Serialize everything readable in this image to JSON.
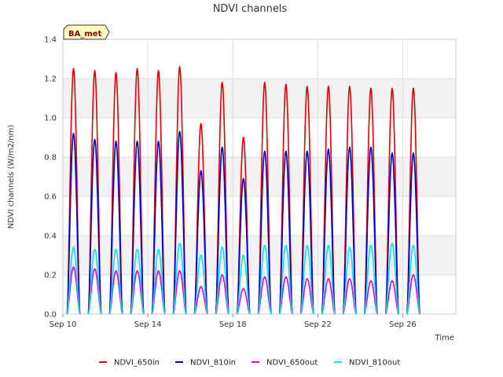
{
  "chart_data": {
    "type": "line",
    "title": "NDVI channels",
    "xlabel": "Time",
    "ylabel": "NDVI channels (W/m2/nm)",
    "ylim": [
      0,
      1.4
    ],
    "xlim_days": [
      10,
      28.5
    ],
    "yticks": [
      "0.0",
      "0.2",
      "0.4",
      "0.6",
      "0.8",
      "1.0",
      "1.2",
      "1.4"
    ],
    "xticks": [
      {
        "day": 10,
        "label": "Sep 10"
      },
      {
        "day": 14,
        "label": "Sep 14"
      },
      {
        "day": 18,
        "label": "Sep 18"
      },
      {
        "day": 22,
        "label": "Sep 22"
      },
      {
        "day": 26,
        "label": "Sep 26"
      }
    ],
    "badge": "BA_met",
    "grid": true,
    "legend_position": "bottom",
    "day_peaks": [
      10.5,
      11.5,
      12.5,
      13.5,
      14.5,
      15.5,
      16.5,
      17.5,
      18.5,
      19.5,
      20.5,
      21.5,
      22.5,
      23.5,
      24.5,
      25.5,
      26.5
    ],
    "series": [
      {
        "name": "NDVI_650in",
        "color": "#e00000",
        "peaks": [
          1.25,
          1.24,
          1.23,
          1.25,
          1.24,
          1.26,
          0.97,
          1.18,
          0.9,
          1.18,
          1.17,
          1.16,
          1.16,
          1.16,
          1.15,
          1.15,
          1.15
        ]
      },
      {
        "name": "NDVI_810in",
        "color": "#0000cc",
        "peaks": [
          0.92,
          0.89,
          0.88,
          0.88,
          0.88,
          0.93,
          0.73,
          0.85,
          0.69,
          0.83,
          0.83,
          0.83,
          0.84,
          0.85,
          0.85,
          0.82,
          0.82
        ]
      },
      {
        "name": "NDVI_650out",
        "color": "#dd00dd",
        "peaks": [
          0.24,
          0.23,
          0.22,
          0.22,
          0.22,
          0.22,
          0.14,
          0.2,
          0.13,
          0.19,
          0.19,
          0.18,
          0.18,
          0.18,
          0.17,
          0.17,
          0.2
        ]
      },
      {
        "name": "NDVI_810out",
        "color": "#00e5ee",
        "peaks": [
          0.34,
          0.33,
          0.33,
          0.33,
          0.33,
          0.36,
          0.3,
          0.34,
          0.3,
          0.35,
          0.35,
          0.35,
          0.35,
          0.34,
          0.35,
          0.36,
          0.35
        ]
      }
    ]
  }
}
